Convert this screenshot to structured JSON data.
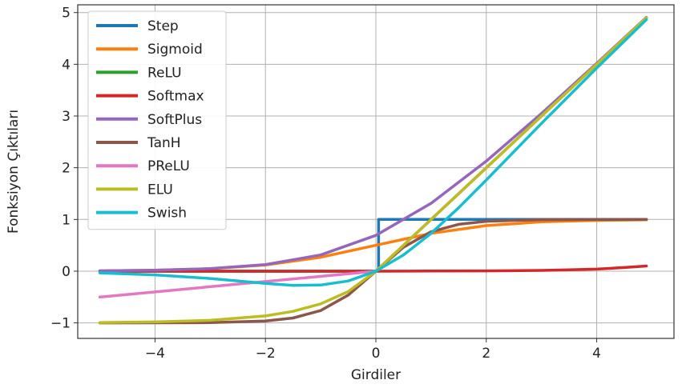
{
  "chart_data": {
    "type": "line",
    "title": "",
    "xlabel": "Girdiler",
    "ylabel": "Fonksiyon Çıktıları",
    "xlim": [
      -5.4,
      5.4
    ],
    "ylim": [
      -1.3,
      5.15
    ],
    "x_ticks": [
      -4,
      -2,
      0,
      2,
      4
    ],
    "x_tick_labels": [
      "−4",
      "−2",
      "0",
      "2",
      "4"
    ],
    "y_ticks": [
      -1,
      0,
      1,
      2,
      3,
      4,
      5
    ],
    "y_tick_labels": [
      "−1",
      "0",
      "1",
      "2",
      "3",
      "4",
      "5"
    ],
    "grid": true,
    "legend_position": "top-left",
    "x_range": [
      -5,
      4.9
    ],
    "series": [
      {
        "name": "Step",
        "color": "#1f77b4",
        "x": [
          -5,
          0.05,
          0.05,
          4.9
        ],
        "y": [
          0,
          0,
          1,
          1
        ]
      },
      {
        "name": "Sigmoid",
        "color": "#ff7f0e",
        "x": [
          -5,
          -4,
          -3,
          -2,
          -1,
          0,
          1,
          2,
          3,
          4,
          4.9
        ],
        "y": [
          0.007,
          0.018,
          0.047,
          0.119,
          0.269,
          0.5,
          0.731,
          0.881,
          0.953,
          0.982,
          0.993
        ]
      },
      {
        "name": "ReLU",
        "color": "#2ca02c",
        "x": [
          -5,
          0,
          4.9
        ],
        "y": [
          0,
          0,
          4.9
        ]
      },
      {
        "name": "Softmax",
        "color": "#d62728",
        "x": [
          -5,
          -3,
          -1,
          0,
          1,
          2,
          3,
          3.5,
          4,
          4.5,
          4.9
        ],
        "y": [
          0,
          0,
          0,
          0,
          0.002,
          0.005,
          0.015,
          0.025,
          0.04,
          0.07,
          0.1
        ]
      },
      {
        "name": "SoftPlus",
        "color": "#9467bd",
        "x": [
          -5,
          -4,
          -3,
          -2,
          -1,
          0,
          1,
          2,
          3,
          4,
          4.9
        ],
        "y": [
          0.007,
          0.018,
          0.049,
          0.127,
          0.313,
          0.693,
          1.313,
          2.127,
          3.049,
          4.018,
          4.907
        ]
      },
      {
        "name": "TanH",
        "color": "#8c564b",
        "x": [
          -5,
          -4,
          -3,
          -2,
          -1.5,
          -1,
          -0.5,
          0,
          0.5,
          1,
          1.5,
          2,
          3,
          4,
          4.9
        ],
        "y": [
          -1,
          -0.999,
          -0.995,
          -0.964,
          -0.905,
          -0.762,
          -0.462,
          0,
          0.462,
          0.762,
          0.905,
          0.964,
          0.995,
          0.999,
          1
        ]
      },
      {
        "name": "PReLU",
        "color": "#e377c2",
        "x": [
          -5,
          0,
          4.9
        ],
        "y": [
          -0.5,
          0,
          4.9
        ]
      },
      {
        "name": "ELU",
        "color": "#bcbd22",
        "x": [
          -5,
          -4,
          -3,
          -2,
          -1.5,
          -1,
          -0.5,
          0,
          4.9
        ],
        "y": [
          -0.993,
          -0.982,
          -0.95,
          -0.865,
          -0.777,
          -0.632,
          -0.393,
          0,
          4.9
        ]
      },
      {
        "name": "Swish",
        "color": "#17becf",
        "x": [
          -5,
          -4,
          -3,
          -2,
          -1.5,
          -1,
          -0.5,
          0,
          0.5,
          1,
          1.5,
          2,
          3,
          4,
          4.9
        ],
        "y": [
          -0.033,
          -0.072,
          -0.142,
          -0.238,
          -0.274,
          -0.269,
          -0.189,
          0,
          0.311,
          0.731,
          1.226,
          1.762,
          2.858,
          3.928,
          4.864
        ]
      }
    ]
  }
}
